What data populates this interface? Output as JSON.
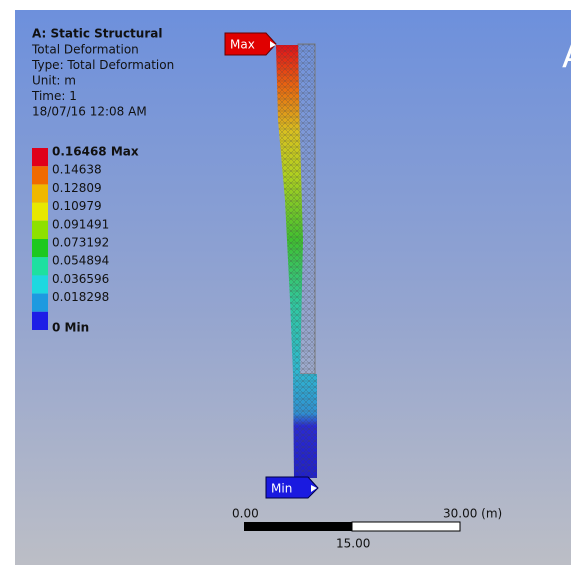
{
  "header": {
    "title": "A: Static Structural",
    "lines": [
      "Total Deformation",
      "Type: Total Deformation",
      "Unit: m",
      "Time: 1",
      "18/07/16 12:08 AM"
    ]
  },
  "legend": [
    {
      "label": "0.16468 Max",
      "color": "#e0001a"
    },
    {
      "label": "0.14638",
      "color": "#f06a00"
    },
    {
      "label": "0.12809",
      "color": "#f0b800"
    },
    {
      "label": "0.10979",
      "color": "#e8e800"
    },
    {
      "label": "0.091491",
      "color": "#8ee000"
    },
    {
      "label": "0.073192",
      "color": "#1ec81e"
    },
    {
      "label": "0.054894",
      "color": "#1ee0a0"
    },
    {
      "label": "0.036596",
      "color": "#1ed8e0"
    },
    {
      "label": "0.018298",
      "color": "#1e9ae0"
    },
    {
      "label": "0 Min",
      "color": "#1e1ee6"
    }
  ],
  "probes": {
    "max": "Max",
    "min": "Min"
  },
  "scale_bar": {
    "start": "0.00",
    "end": "30.00 (m)",
    "middle": "15.00"
  },
  "corner_glyph": "A"
}
